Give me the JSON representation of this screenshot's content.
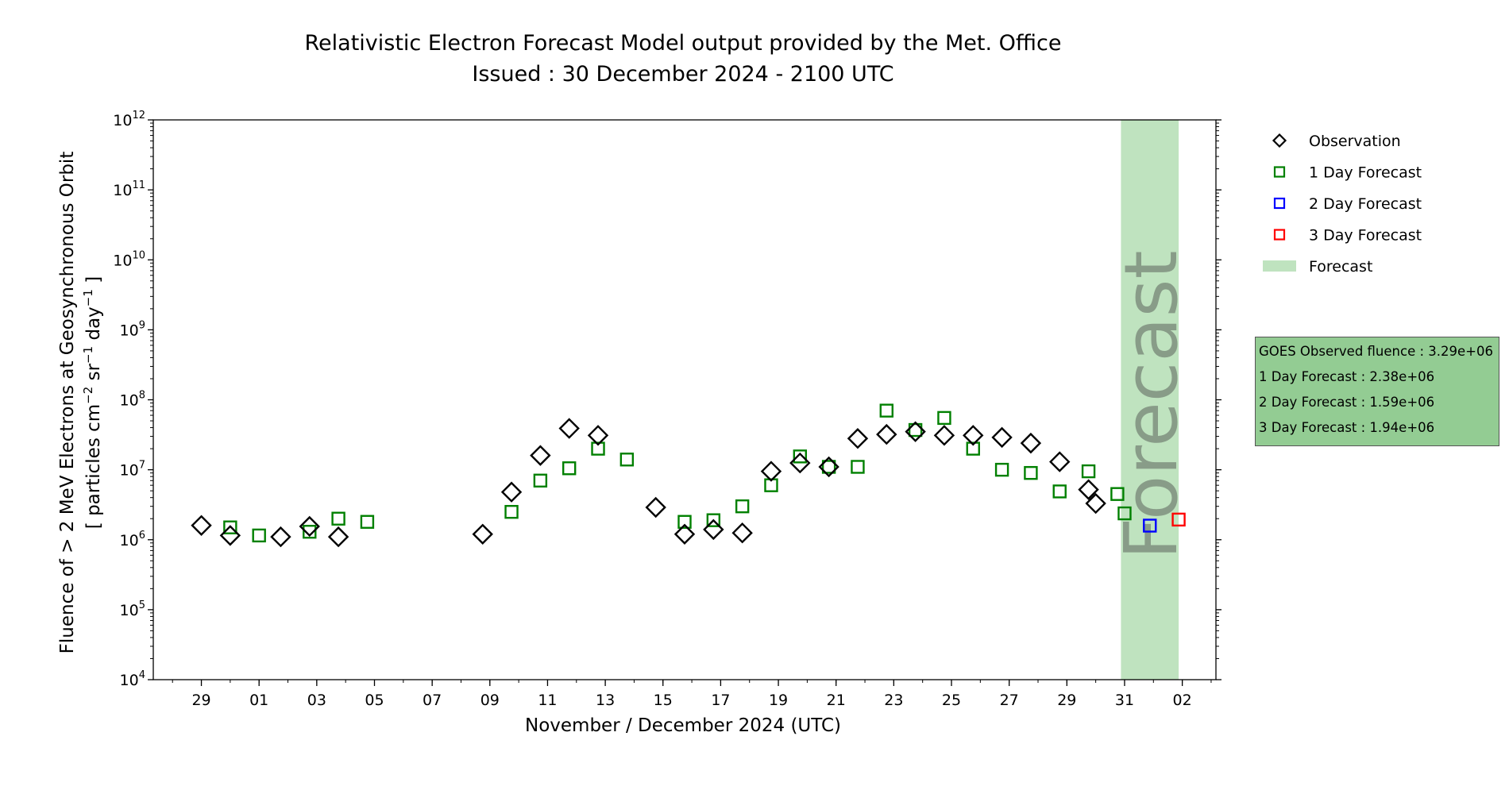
{
  "chart_data": {
    "type": "scatter",
    "title": "Relativistic Electron Forecast Model output provided by the Met. Office",
    "subtitle": "Issued : 30 December 2024 - 2100 UTC",
    "xlabel": "November / December 2024 (UTC)",
    "ylabel_line1": "Fluence of > 2 MeV Electrons at Geosynchronous Orbit",
    "ylabel_line2_parts": [
      "[ particles cm",
      "−2",
      " sr",
      "−1",
      " day",
      "−1",
      " ]"
    ],
    "y_scale": "log",
    "ylim": [
      10000,
      1000000000000
    ],
    "y_tick_exponents": [
      4,
      5,
      6,
      7,
      8,
      9,
      10,
      11,
      12
    ],
    "y_tick_base": "10",
    "xlim": [
      "2024-11-27T08:00",
      "2025-01-03T04:00"
    ],
    "x_ticks": [
      {
        "date": "2024-11-29",
        "label": "29"
      },
      {
        "date": "2024-12-01",
        "label": "01"
      },
      {
        "date": "2024-12-03",
        "label": "03"
      },
      {
        "date": "2024-12-05",
        "label": "05"
      },
      {
        "date": "2024-12-07",
        "label": "07"
      },
      {
        "date": "2024-12-09",
        "label": "09"
      },
      {
        "date": "2024-12-11",
        "label": "11"
      },
      {
        "date": "2024-12-13",
        "label": "13"
      },
      {
        "date": "2024-12-15",
        "label": "15"
      },
      {
        "date": "2024-12-17",
        "label": "17"
      },
      {
        "date": "2024-12-19",
        "label": "19"
      },
      {
        "date": "2024-12-21",
        "label": "21"
      },
      {
        "date": "2024-12-23",
        "label": "23"
      },
      {
        "date": "2024-12-25",
        "label": "25"
      },
      {
        "date": "2024-12-27",
        "label": "27"
      },
      {
        "date": "2024-12-29",
        "label": "29"
      },
      {
        "date": "2024-12-31",
        "label": "31"
      },
      {
        "date": "2025-01-02",
        "label": "02"
      }
    ],
    "forecast_region": {
      "start": "2024-12-30T21:00",
      "end": "2025-01-01T21:00",
      "label": "Forecast",
      "color": "#bfe3bf"
    },
    "series": [
      {
        "name": "Observation",
        "marker": "diamond",
        "color": "#000000",
        "points": [
          {
            "x": "2024-11-29T00:00",
            "y": 1600000
          },
          {
            "x": "2024-11-30T00:00",
            "y": 1150000
          },
          {
            "x": "2024-12-01T18:00",
            "y": 1100000
          },
          {
            "x": "2024-12-02T18:00",
            "y": 1550000
          },
          {
            "x": "2024-12-03T18:00",
            "y": 1100000
          },
          {
            "x": "2024-12-08T18:00",
            "y": 1200000
          },
          {
            "x": "2024-12-09T18:00",
            "y": 4800000
          },
          {
            "x": "2024-12-10T18:00",
            "y": 16000000
          },
          {
            "x": "2024-12-11T18:00",
            "y": 39000000
          },
          {
            "x": "2024-12-12T18:00",
            "y": 31000000
          },
          {
            "x": "2024-12-14T18:00",
            "y": 2900000
          },
          {
            "x": "2024-12-15T18:00",
            "y": 1200000
          },
          {
            "x": "2024-12-16T18:00",
            "y": 1400000
          },
          {
            "x": "2024-12-17T18:00",
            "y": 1250000
          },
          {
            "x": "2024-12-18T18:00",
            "y": 9500000
          },
          {
            "x": "2024-12-19T18:00",
            "y": 12500000
          },
          {
            "x": "2024-12-20T18:00",
            "y": 11000000
          },
          {
            "x": "2024-12-21T18:00",
            "y": 28000000
          },
          {
            "x": "2024-12-22T18:00",
            "y": 32000000
          },
          {
            "x": "2024-12-23T18:00",
            "y": 35000000
          },
          {
            "x": "2024-12-24T18:00",
            "y": 31000000
          },
          {
            "x": "2024-12-25T18:00",
            "y": 31000000
          },
          {
            "x": "2024-12-26T18:00",
            "y": 29000000
          },
          {
            "x": "2024-12-27T18:00",
            "y": 24000000
          },
          {
            "x": "2024-12-28T18:00",
            "y": 13000000
          },
          {
            "x": "2024-12-29T18:00",
            "y": 5200000
          },
          {
            "x": "2024-12-30T00:00",
            "y": 3300000
          }
        ]
      },
      {
        "name": "1 Day Forecast",
        "marker": "square",
        "color": "#008000",
        "points": [
          {
            "x": "2024-11-30T00:00",
            "y": 1500000
          },
          {
            "x": "2024-12-01T00:00",
            "y": 1150000
          },
          {
            "x": "2024-12-02T18:00",
            "y": 1300000
          },
          {
            "x": "2024-12-03T18:00",
            "y": 2000000
          },
          {
            "x": "2024-12-04T18:00",
            "y": 1800000
          },
          {
            "x": "2024-12-09T18:00",
            "y": 2500000
          },
          {
            "x": "2024-12-10T18:00",
            "y": 7000000
          },
          {
            "x": "2024-12-11T18:00",
            "y": 10500000
          },
          {
            "x": "2024-12-12T18:00",
            "y": 20000000
          },
          {
            "x": "2024-12-13T18:00",
            "y": 14000000
          },
          {
            "x": "2024-12-15T18:00",
            "y": 1800000
          },
          {
            "x": "2024-12-16T18:00",
            "y": 1900000
          },
          {
            "x": "2024-12-17T18:00",
            "y": 3000000
          },
          {
            "x": "2024-12-18T18:00",
            "y": 6000000
          },
          {
            "x": "2024-12-19T18:00",
            "y": 15500000
          },
          {
            "x": "2024-12-20T18:00",
            "y": 11000000
          },
          {
            "x": "2024-12-21T18:00",
            "y": 11000000
          },
          {
            "x": "2024-12-22T18:00",
            "y": 70000000
          },
          {
            "x": "2024-12-23T18:00",
            "y": 37000000
          },
          {
            "x": "2024-12-24T18:00",
            "y": 55000000
          },
          {
            "x": "2024-12-25T18:00",
            "y": 20000000
          },
          {
            "x": "2024-12-26T18:00",
            "y": 10000000
          },
          {
            "x": "2024-12-27T18:00",
            "y": 9000000
          },
          {
            "x": "2024-12-28T18:00",
            "y": 4900000
          },
          {
            "x": "2024-12-29T18:00",
            "y": 9500000
          },
          {
            "x": "2024-12-30T18:00",
            "y": 4500000
          },
          {
            "x": "2024-12-31T00:00",
            "y": 2380000
          }
        ]
      },
      {
        "name": "2 Day Forecast",
        "marker": "square",
        "color": "#0000ff",
        "points": [
          {
            "x": "2024-12-31T21:00",
            "y": 1590000
          }
        ]
      },
      {
        "name": "3 Day Forecast",
        "marker": "square",
        "color": "#ff0000",
        "points": [
          {
            "x": "2025-01-01T21:00",
            "y": 1940000
          }
        ]
      }
    ],
    "legend": {
      "position": "right",
      "entries": [
        {
          "label": "Observation",
          "marker": "diamond",
          "color": "#000000"
        },
        {
          "label": "1 Day Forecast",
          "marker": "square",
          "color": "#008000"
        },
        {
          "label": "2 Day Forecast",
          "marker": "square",
          "color": "#0000ff"
        },
        {
          "label": "3 Day Forecast",
          "marker": "square",
          "color": "#ff0000"
        },
        {
          "label": "Forecast",
          "marker": "patch",
          "color": "#bfe3bf"
        }
      ]
    }
  },
  "stats": {
    "observed": "GOES Observed fluence : 3.29e+06",
    "day1": "1 Day Forecast : 2.38e+06",
    "day2": "2 Day Forecast : 1.59e+06",
    "day3": "3 Day Forecast : 1.94e+06"
  }
}
